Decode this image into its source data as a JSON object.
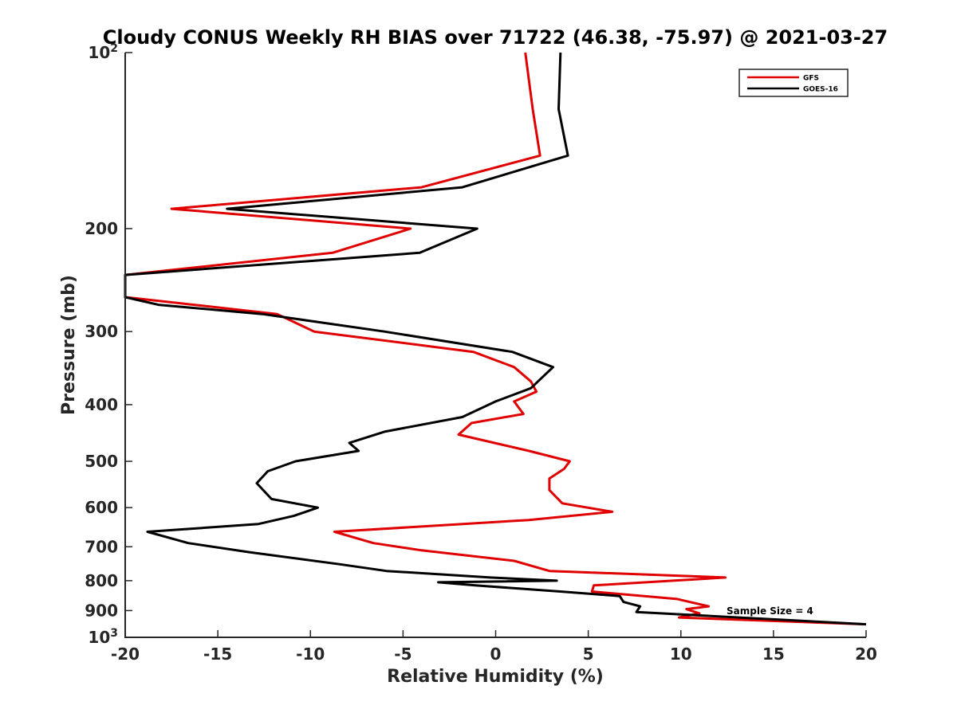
{
  "chart_data": {
    "type": "line",
    "title": "Cloudy CONUS Weekly RH BIAS over 71722 (46.38, -75.97) @ 2021-03-27",
    "xlabel": "Relative Humidity (%)",
    "ylabel": "Pressure (mb)",
    "xlim": [
      -20,
      20
    ],
    "ylim": [
      100,
      1000
    ],
    "yscale": "log",
    "yreverse": true,
    "grid": false,
    "legend_position": "top-right",
    "x_ticks": [
      -20,
      -15,
      -10,
      -5,
      0,
      5,
      10,
      15,
      20
    ],
    "x_tick_labels": [
      "-20",
      "-15",
      "-10",
      "-5",
      "0",
      "5",
      "10",
      "15",
      "20"
    ],
    "y_ticks": [
      {
        "value": 100,
        "base": "10",
        "exp": "2"
      },
      {
        "value": 200,
        "label": "200"
      },
      {
        "value": 300,
        "label": "300"
      },
      {
        "value": 400,
        "label": "400"
      },
      {
        "value": 500,
        "label": "500"
      },
      {
        "value": 600,
        "label": "600"
      },
      {
        "value": 700,
        "label": "700"
      },
      {
        "value": 800,
        "label": "800"
      },
      {
        "value": 900,
        "label": "900"
      },
      {
        "value": 1000,
        "base": "10",
        "exp": "3"
      }
    ],
    "annotation": "Sample Size = 4",
    "series": [
      {
        "name": "GFS",
        "color": "#e00000",
        "points": [
          [
            1.6,
            100
          ],
          [
            2.0,
            125
          ],
          [
            2.4,
            150
          ],
          [
            -4.0,
            170
          ],
          [
            -17.5,
            185
          ],
          [
            -4.6,
            200
          ],
          [
            -8.8,
            220
          ],
          [
            -20.0,
            240
          ],
          [
            -20.0,
            262
          ],
          [
            -11.8,
            280
          ],
          [
            -9.8,
            300
          ],
          [
            -1.2,
            325
          ],
          [
            1.0,
            345
          ],
          [
            1.9,
            365
          ],
          [
            2.2,
            380
          ],
          [
            1.0,
            395
          ],
          [
            1.5,
            415
          ],
          [
            -1.3,
            430
          ],
          [
            -2.0,
            450
          ],
          [
            1.8,
            480
          ],
          [
            4.0,
            500
          ],
          [
            3.7,
            515
          ],
          [
            2.9,
            535
          ],
          [
            2.9,
            560
          ],
          [
            3.6,
            590
          ],
          [
            6.3,
            610
          ],
          [
            1.8,
            630
          ],
          [
            -8.7,
            660
          ],
          [
            -6.6,
            690
          ],
          [
            -4.0,
            710
          ],
          [
            1.0,
            740
          ],
          [
            2.9,
            770
          ],
          [
            12.4,
            790
          ],
          [
            5.3,
            815
          ],
          [
            5.2,
            835
          ],
          [
            9.8,
            860
          ],
          [
            11.5,
            885
          ],
          [
            10.3,
            895
          ],
          [
            11.0,
            910
          ],
          [
            9.9,
            925
          ],
          [
            20.0,
            950
          ]
        ]
      },
      {
        "name": "GOES-16",
        "color": "#000000",
        "points": [
          [
            3.5,
            100
          ],
          [
            3.4,
            125
          ],
          [
            3.9,
            150
          ],
          [
            -1.8,
            170
          ],
          [
            -14.5,
            185
          ],
          [
            -1.0,
            200
          ],
          [
            -4.1,
            220
          ],
          [
            -20.0,
            240
          ],
          [
            -20.0,
            262
          ],
          [
            -18.2,
            270
          ],
          [
            -12.6,
            280
          ],
          [
            -6.0,
            300
          ],
          [
            0.9,
            325
          ],
          [
            3.1,
            345
          ],
          [
            1.9,
            375
          ],
          [
            0.0,
            395
          ],
          [
            -1.8,
            420
          ],
          [
            -6.0,
            445
          ],
          [
            -7.9,
            465
          ],
          [
            -7.4,
            480
          ],
          [
            -10.8,
            500
          ],
          [
            -12.3,
            520
          ],
          [
            -12.9,
            545
          ],
          [
            -12.1,
            580
          ],
          [
            -9.6,
            600
          ],
          [
            -10.9,
            620
          ],
          [
            -12.8,
            640
          ],
          [
            -18.8,
            660
          ],
          [
            -16.6,
            690
          ],
          [
            -13.3,
            715
          ],
          [
            -8.4,
            750
          ],
          [
            -5.9,
            770
          ],
          [
            -0.3,
            790
          ],
          [
            3.3,
            800
          ],
          [
            -3.1,
            805
          ],
          [
            -1.1,
            815
          ],
          [
            3.5,
            835
          ],
          [
            6.7,
            850
          ],
          [
            6.9,
            870
          ],
          [
            7.8,
            885
          ],
          [
            7.6,
            905
          ],
          [
            20.0,
            950
          ]
        ]
      }
    ]
  }
}
